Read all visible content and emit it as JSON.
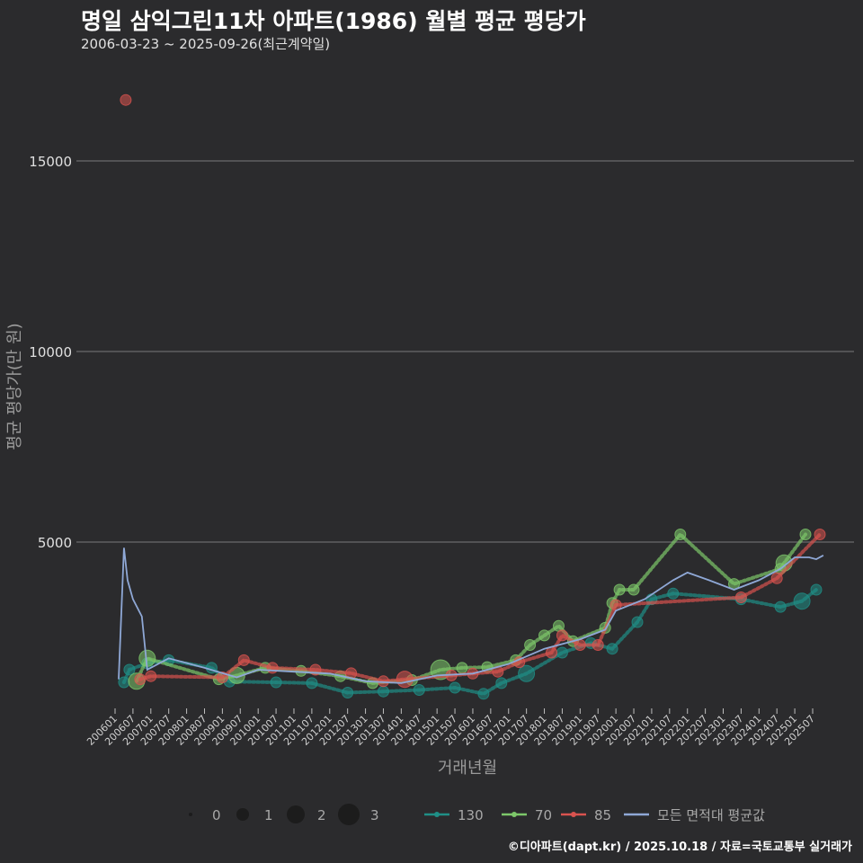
{
  "header": {
    "title": "명일 삼익그린11차 아파트(1986) 월별 평균 평당가",
    "subtitle": "2006-03-23 ~ 2025-09-26(최근계약일)"
  },
  "caption": "©디아파트(dapt.kr) / 2025.10.18 / 자료=국토교통부 실거래가",
  "colors": {
    "background": "#2b2b2d",
    "grid": "#7a7a7a",
    "s130": "#1f8f86",
    "s70": "#7dc86a",
    "s85": "#d9534f",
    "avg": "#8fa8d6"
  },
  "chart_data": {
    "type": "line",
    "ylabel": "평균 평당가(만 원)",
    "xlabel": "거래년월",
    "ylim": [
      0,
      17500
    ],
    "yticks": [
      5000,
      10000,
      15000
    ],
    "x_tick_labels": [
      "200601",
      "200607",
      "200701",
      "200707",
      "200801",
      "200807",
      "200901",
      "200907",
      "201001",
      "201007",
      "201101",
      "201107",
      "201201",
      "201207",
      "201301",
      "201307",
      "201401",
      "201407",
      "201501",
      "201507",
      "201601",
      "201607",
      "201701",
      "201707",
      "201801",
      "201807",
      "201901",
      "201907",
      "202001",
      "202007",
      "202101",
      "202107",
      "202201",
      "202207",
      "202301",
      "202307",
      "202401",
      "202407",
      "202501",
      "202507"
    ],
    "series": [
      {
        "name": "130",
        "points": [
          [
            2006.25,
            1320,
            1
          ],
          [
            2006.4,
            1650,
            1
          ],
          [
            2006.9,
            1820,
            1
          ],
          [
            2007.5,
            1900,
            1
          ],
          [
            2008.7,
            1700,
            1
          ],
          [
            2009.2,
            1340,
            1
          ],
          [
            2010.5,
            1320,
            1
          ],
          [
            2011.5,
            1300,
            1
          ],
          [
            2012.5,
            1050,
            1
          ],
          [
            2013.5,
            1080,
            1
          ],
          [
            2014.5,
            1120,
            1
          ],
          [
            2015.5,
            1180,
            1
          ],
          [
            2016.3,
            1020,
            1
          ],
          [
            2016.8,
            1300,
            1
          ],
          [
            2017.5,
            1550,
            2
          ],
          [
            2018.5,
            2100,
            1
          ],
          [
            2019.3,
            2350,
            1
          ],
          [
            2019.9,
            2200,
            1
          ],
          [
            2020.6,
            2900,
            1
          ],
          [
            2021.0,
            3500,
            1
          ],
          [
            2021.6,
            3650,
            1
          ],
          [
            2023.5,
            3500,
            1
          ],
          [
            2024.6,
            3300,
            1
          ],
          [
            2025.2,
            3450,
            2
          ],
          [
            2025.6,
            3750,
            1
          ]
        ]
      },
      {
        "name": "70",
        "points": [
          [
            2006.6,
            1350,
            2
          ],
          [
            2006.9,
            1950,
            2
          ],
          [
            2008.9,
            1400,
            1
          ],
          [
            2009.4,
            1500,
            2
          ],
          [
            2010.2,
            1700,
            1
          ],
          [
            2011.2,
            1620,
            1
          ],
          [
            2012.3,
            1480,
            1
          ],
          [
            2013.2,
            1300,
            1
          ],
          [
            2014.3,
            1380,
            1
          ],
          [
            2015.1,
            1650,
            3
          ],
          [
            2015.7,
            1700,
            1
          ],
          [
            2016.4,
            1720,
            1
          ],
          [
            2017.2,
            1900,
            1
          ],
          [
            2017.6,
            2300,
            1
          ],
          [
            2018.0,
            2550,
            1
          ],
          [
            2018.4,
            2800,
            1
          ],
          [
            2018.8,
            2400,
            1
          ],
          [
            2019.7,
            2750,
            1
          ],
          [
            2019.9,
            3400,
            1
          ],
          [
            2020.1,
            3750,
            1
          ],
          [
            2020.5,
            3750,
            1
          ],
          [
            2021.8,
            5200,
            1
          ],
          [
            2023.3,
            3900,
            1
          ],
          [
            2024.6,
            4300,
            1
          ],
          [
            2024.7,
            4450,
            2
          ],
          [
            2025.3,
            5200,
            1
          ]
        ]
      },
      {
        "name": "85",
        "points": [
          [
            2006.3,
            16600,
            1
          ],
          [
            2006.7,
            1400,
            1
          ],
          [
            2007.0,
            1480,
            1
          ],
          [
            2009.0,
            1450,
            1
          ],
          [
            2009.6,
            1900,
            1
          ],
          [
            2010.4,
            1700,
            1
          ],
          [
            2011.6,
            1650,
            1
          ],
          [
            2012.6,
            1560,
            1
          ],
          [
            2013.5,
            1350,
            1
          ],
          [
            2014.1,
            1400,
            2
          ],
          [
            2015.4,
            1500,
            1
          ],
          [
            2016.0,
            1550,
            1
          ],
          [
            2016.7,
            1600,
            1
          ],
          [
            2017.3,
            1850,
            1
          ],
          [
            2018.2,
            2100,
            1
          ],
          [
            2018.5,
            2550,
            1
          ],
          [
            2019.0,
            2300,
            1
          ],
          [
            2019.5,
            2300,
            1
          ],
          [
            2020.0,
            3350,
            1
          ],
          [
            2023.5,
            3550,
            1
          ],
          [
            2024.5,
            4050,
            1
          ],
          [
            2025.7,
            5200,
            1
          ]
        ]
      },
      {
        "name": "모든 면적대 평균값",
        "line": [
          [
            2006.1,
            1400
          ],
          [
            2006.25,
            4850
          ],
          [
            2006.35,
            4000
          ],
          [
            2006.5,
            3500
          ],
          [
            2006.75,
            3050
          ],
          [
            2006.9,
            1650
          ],
          [
            2007.5,
            1950
          ],
          [
            2008.5,
            1700
          ],
          [
            2009.4,
            1450
          ],
          [
            2010.0,
            1650
          ],
          [
            2011.0,
            1600
          ],
          [
            2012.0,
            1550
          ],
          [
            2013.0,
            1350
          ],
          [
            2014.0,
            1300
          ],
          [
            2015.0,
            1500
          ],
          [
            2016.0,
            1550
          ],
          [
            2017.0,
            1800
          ],
          [
            2018.0,
            2200
          ],
          [
            2019.0,
            2450
          ],
          [
            2019.7,
            2700
          ],
          [
            2020.0,
            3200
          ],
          [
            2020.8,
            3500
          ],
          [
            2021.6,
            4000
          ],
          [
            2022.0,
            4200
          ],
          [
            2022.6,
            4000
          ],
          [
            2023.3,
            3750
          ],
          [
            2024.0,
            4000
          ],
          [
            2024.6,
            4300
          ],
          [
            2025.0,
            4600
          ],
          [
            2025.4,
            4600
          ],
          [
            2025.6,
            4550
          ],
          [
            2025.8,
            4650
          ]
        ]
      }
    ],
    "legend_sizes": {
      "labels": [
        "0",
        "1",
        "2",
        "3"
      ]
    },
    "legend_placement": "bottom"
  }
}
